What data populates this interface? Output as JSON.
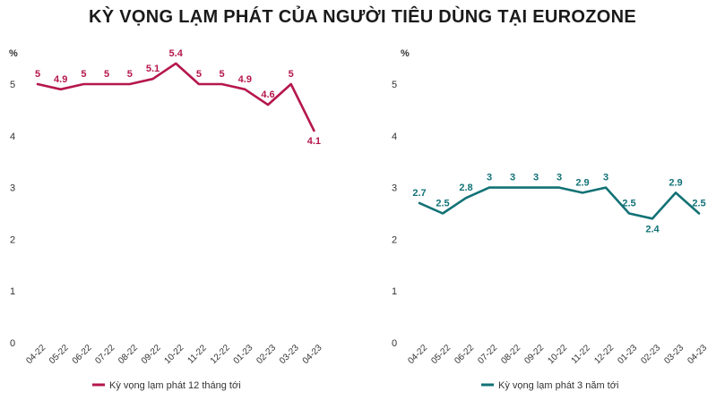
{
  "title": "KỲ VỌNG LẠM PHÁT CỦA NGƯỜI TIÊU DÙNG TẠI EUROZONE",
  "chart_data": [
    {
      "type": "line",
      "unit_label": "%",
      "categories": [
        "04-22",
        "05-22",
        "06-22",
        "07-22",
        "08-22",
        "09-22",
        "10-22",
        "11-22",
        "12-22",
        "01-23",
        "02-23",
        "03-23",
        "04-23"
      ],
      "series": [
        {
          "name": "Kỳ vọng lạm phát 12 tháng tới",
          "values": [
            5,
            4.9,
            5,
            5,
            5,
            5.1,
            5.4,
            5,
            5,
            4.9,
            4.6,
            5,
            4.1
          ],
          "labels": [
            "5",
            "4.9",
            "5",
            "5",
            "5",
            "5.1",
            "5.4",
            "5",
            "5",
            "4.9",
            "4.6",
            "5",
            "4.1"
          ],
          "color": "#b5174b"
        }
      ],
      "ylim": [
        0,
        5.6
      ],
      "yticks": [
        "0",
        "1",
        "2",
        "3",
        "4",
        "5"
      ],
      "grid": false,
      "legend": "bottom-left"
    },
    {
      "type": "line",
      "unit_label": "%",
      "categories": [
        "04-22",
        "05-22",
        "06-22",
        "07-22",
        "08-22",
        "09-22",
        "10-22",
        "11-22",
        "12-22",
        "01-23",
        "02-23",
        "03-23",
        "04-23"
      ],
      "series": [
        {
          "name": "Kỳ vọng lạm phát 3 năm tới",
          "values": [
            2.7,
            2.5,
            2.8,
            3,
            3,
            3,
            3,
            2.9,
            3,
            2.5,
            2.4,
            2.9,
            2.5
          ],
          "labels": [
            "2.7",
            "2.5",
            "2.8",
            "3",
            "3",
            "3",
            "3",
            "2.9",
            "3",
            "2.5",
            "2.4",
            "2.9",
            "2.5"
          ],
          "color": "#127276"
        }
      ],
      "ylim": [
        0,
        5.6
      ],
      "yticks": [
        "0",
        "1",
        "2",
        "3",
        "4",
        "5"
      ],
      "grid": false,
      "legend": "bottom-left"
    }
  ]
}
